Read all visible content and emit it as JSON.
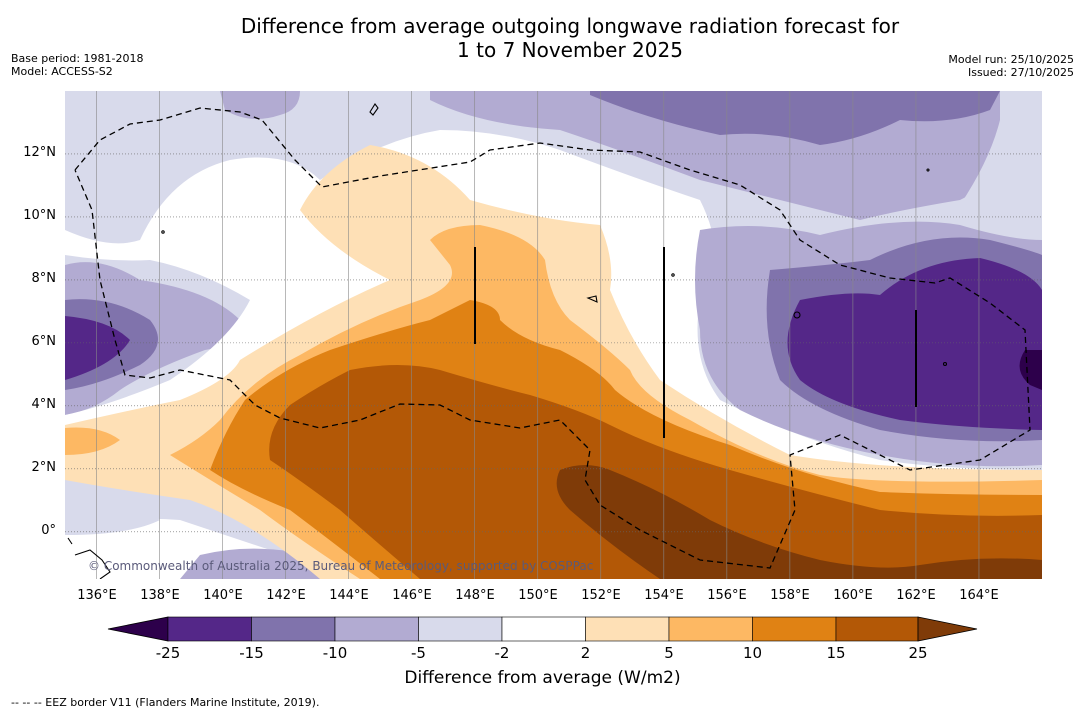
{
  "title": {
    "line1": "Difference from average outgoing longwave radiation forecast for",
    "line2": "1 to 7 November 2025"
  },
  "meta_left": {
    "base_period": "Base period: 1981-2018",
    "model": "Model: ACCESS-S2"
  },
  "meta_right": {
    "model_run": "Model run: 25/10/2025",
    "issued": "Issued: 27/10/2025"
  },
  "map": {
    "lon_range": [
      135,
      166
    ],
    "lat_range": [
      -1.5,
      14
    ],
    "lat_ticks": [
      {
        "label": "12°N",
        "value": 12
      },
      {
        "label": "10°N",
        "value": 10
      },
      {
        "label": "8°N",
        "value": 8
      },
      {
        "label": "6°N",
        "value": 6
      },
      {
        "label": "4°N",
        "value": 4
      },
      {
        "label": "2°N",
        "value": 2
      },
      {
        "label": "0°",
        "value": 0
      }
    ],
    "lon_ticks": [
      {
        "label": "136°E",
        "value": 136
      },
      {
        "label": "138°E",
        "value": 138
      },
      {
        "label": "140°E",
        "value": 140
      },
      {
        "label": "142°E",
        "value": 142
      },
      {
        "label": "144°E",
        "value": 144
      },
      {
        "label": "146°E",
        "value": 146
      },
      {
        "label": "148°E",
        "value": 148
      },
      {
        "label": "150°E",
        "value": 150
      },
      {
        "label": "152°E",
        "value": 152
      },
      {
        "label": "154°E",
        "value": 154
      },
      {
        "label": "156°E",
        "value": 156
      },
      {
        "label": "158°E",
        "value": 158
      },
      {
        "label": "160°E",
        "value": 160
      },
      {
        "label": "162°E",
        "value": 162
      },
      {
        "label": "164°E",
        "value": 164
      }
    ],
    "copyright": "© Commonwealth of Australia 2025, Bureau of Meteorology, supported by COSPPac"
  },
  "colorbar": {
    "colors": {
      "below": "#2d004b",
      "b1": "#542788",
      "b2": "#8073ac",
      "b3": "#b2abd2",
      "b4": "#d8daeb",
      "b5": "#ffffff",
      "b6": "#fee0b6",
      "b7": "#fdb863",
      "b8": "#e08214",
      "b9": "#b35806",
      "above": "#7f3b08"
    },
    "labels": [
      "-25",
      "-15",
      "-10",
      "-5",
      "-2",
      "2",
      "5",
      "10",
      "15",
      "25"
    ],
    "title": "Difference from average (W/m2)"
  },
  "footnote": "--  --  -- EEZ border V11 (Flanders Marine Institute, 2019)."
}
